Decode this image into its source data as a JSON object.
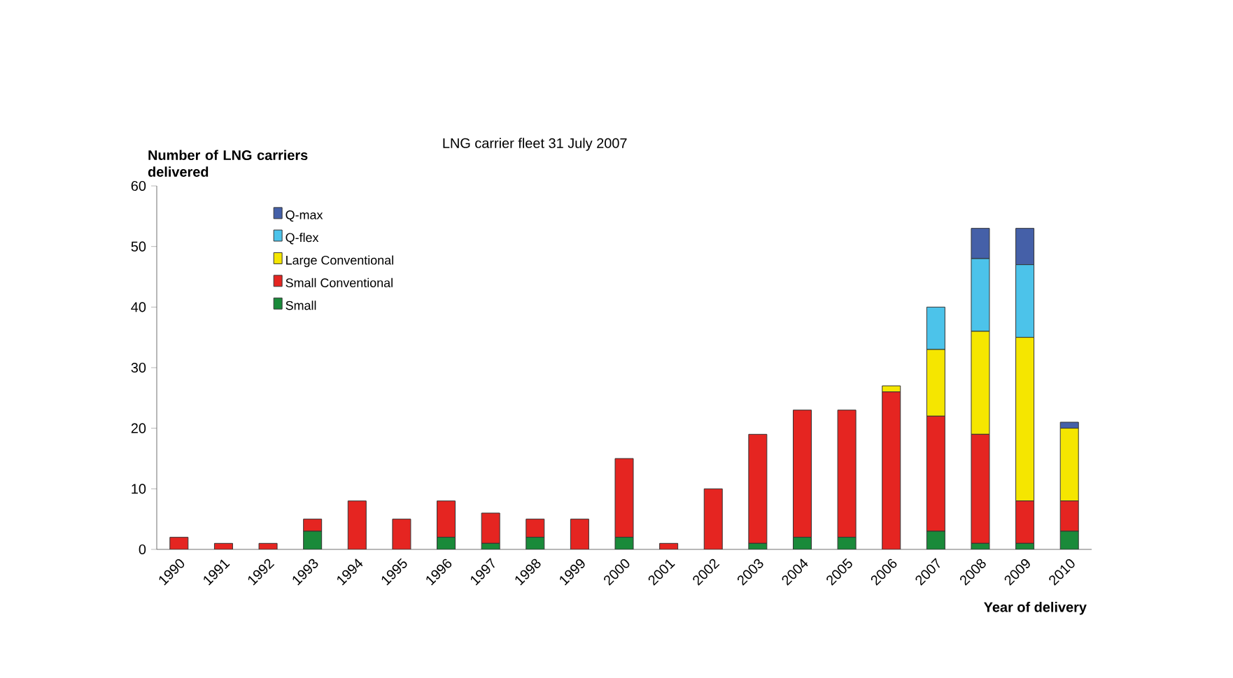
{
  "chart_data": {
    "type": "bar",
    "stacked": true,
    "title": "LNG carrier fleet 31 July 2007",
    "ylabel": "Number of LNG carriers delivered",
    "xlabel": "Year of delivery",
    "categories": [
      "1990",
      "1991",
      "1992",
      "1993",
      "1994",
      "1995",
      "1996",
      "1997",
      "1998",
      "1999",
      "2000",
      "2001",
      "2002",
      "2003",
      "2004",
      "2005",
      "2006",
      "2007",
      "2008",
      "2009",
      "2010"
    ],
    "series": [
      {
        "name": "Small",
        "color": "#1a8a3a",
        "values": [
          0,
          0,
          0,
          3,
          0,
          0,
          2,
          1,
          2,
          0,
          2,
          0,
          0,
          1,
          2,
          2,
          0,
          3,
          1,
          1,
          3
        ]
      },
      {
        "name": "Small Conventional",
        "color": "#e52521",
        "values": [
          2,
          1,
          1,
          2,
          8,
          5,
          6,
          5,
          3,
          5,
          13,
          1,
          10,
          18,
          21,
          21,
          26,
          19,
          18,
          7,
          5
        ]
      },
      {
        "name": "Large Conventional",
        "color": "#f5e600",
        "values": [
          0,
          0,
          0,
          0,
          0,
          0,
          0,
          0,
          0,
          0,
          0,
          0,
          0,
          0,
          0,
          0,
          1,
          11,
          17,
          27,
          12
        ]
      },
      {
        "name": "Q-flex",
        "color": "#4cc3ea",
        "values": [
          0,
          0,
          0,
          0,
          0,
          0,
          0,
          0,
          0,
          0,
          0,
          0,
          0,
          0,
          0,
          0,
          0,
          7,
          12,
          12,
          0
        ]
      },
      {
        "name": "Q-max",
        "color": "#4560a8",
        "values": [
          0,
          0,
          0,
          0,
          0,
          0,
          0,
          0,
          0,
          0,
          0,
          0,
          0,
          0,
          0,
          0,
          0,
          0,
          5,
          6,
          1
        ]
      }
    ],
    "ylim": [
      0,
      60
    ],
    "yticks": [
      0,
      10,
      20,
      30,
      40,
      50,
      60
    ],
    "grid": false,
    "legend": "top left"
  }
}
